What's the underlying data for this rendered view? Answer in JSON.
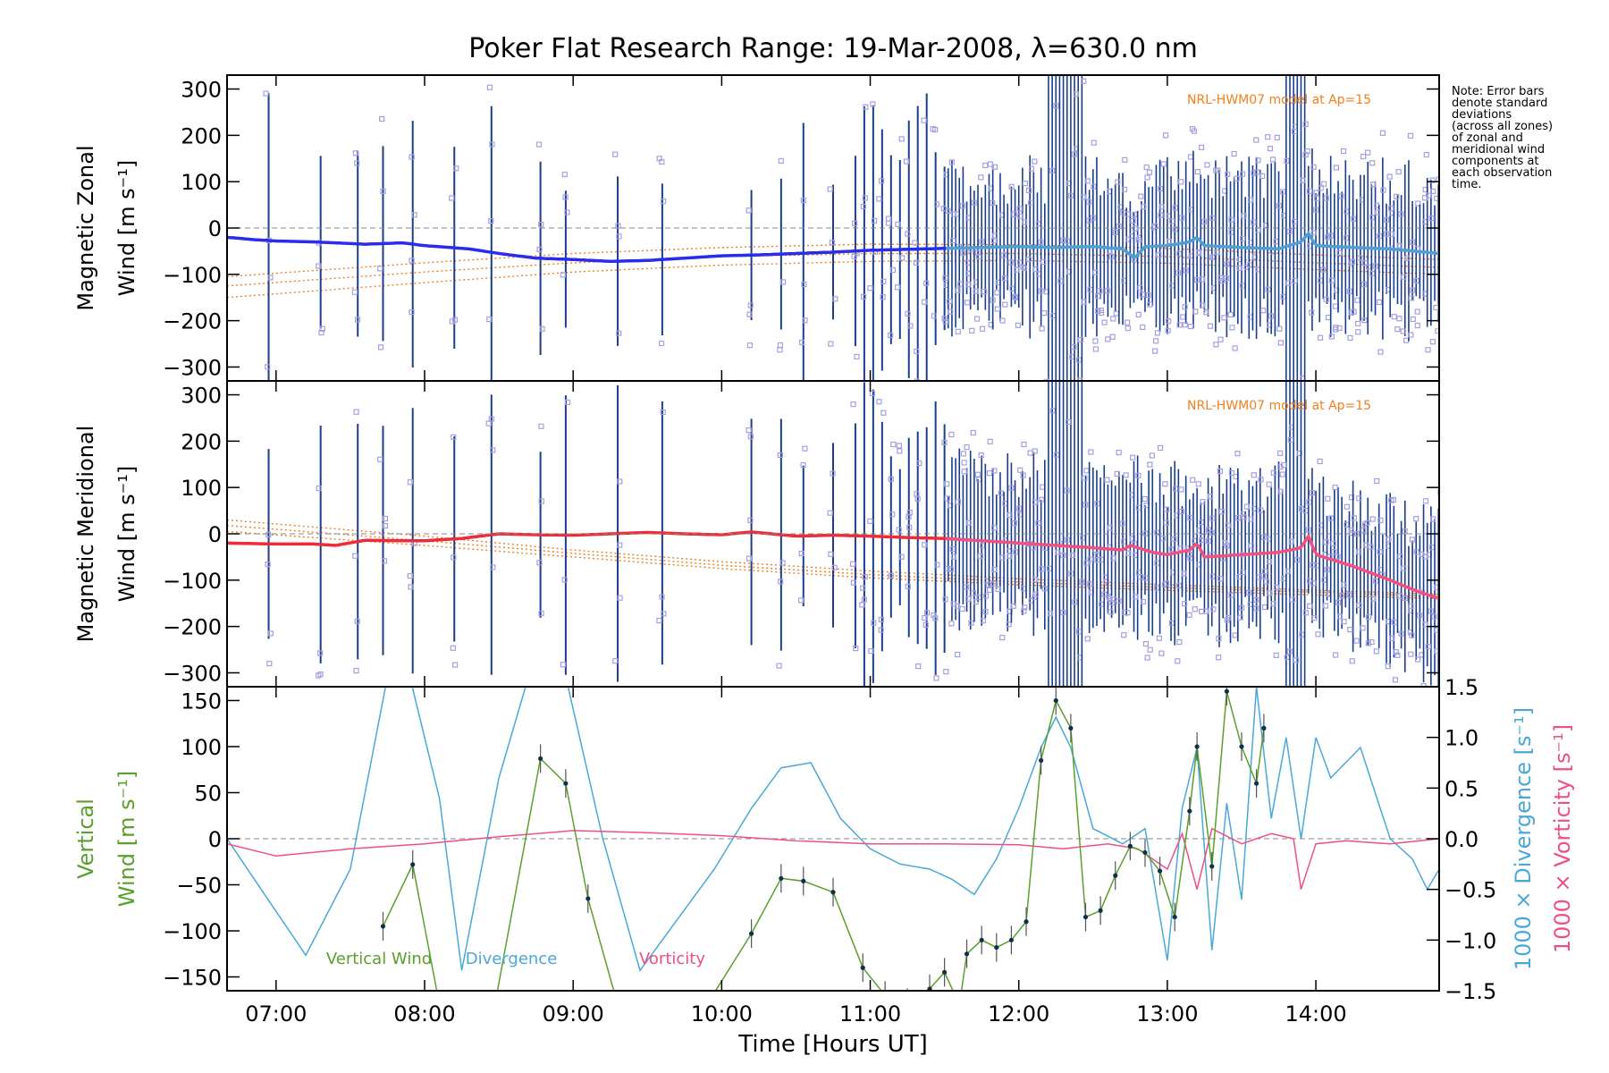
{
  "title": "Poker Flat Research Range: 19-Mar-2008, λ=630.0 nm",
  "note_lines": [
    "Note: Error bars",
    "denote standard",
    "deviations",
    "(across all zones)",
    "of zonal and",
    "meridional wind",
    "components at",
    "each observation",
    "time."
  ],
  "model_label": "NRL-HWM07 model at Ap=15",
  "xaxis": {
    "label": "Time [Hours UT]",
    "range_hours": [
      6.67,
      14.83
    ],
    "ticks": [
      7,
      8,
      9,
      10,
      11,
      12,
      13,
      14
    ],
    "tick_labels": [
      "07:00",
      "08:00",
      "09:00",
      "10:00",
      "11:00",
      "12:00",
      "13:00",
      "14:00"
    ]
  },
  "colors": {
    "zonal": "#2b2bee",
    "zonal_late": "#4d9fd6",
    "meridional": "#ee2b38",
    "meridional_late": "#f2507e",
    "vertical": "#5aa02c",
    "divergence": "#4aa8d8",
    "vorticity": "#ee4f86",
    "model": "#f08020",
    "sample_box": "#a5a0e0",
    "error_bar": "#1a3e8c"
  },
  "chart_data": [
    {
      "type": "line",
      "panel": "zonal",
      "ylabel_line1": "Magnetic Zonal",
      "ylabel_line2": "Wind [m s⁻¹]",
      "ylim": [
        -330,
        330
      ],
      "yticks": [
        -300,
        -200,
        -100,
        0,
        100,
        200,
        300
      ],
      "model_label": "NRL-HWM07 model at Ap=15",
      "series": [
        {
          "x": [
            6.67,
            6.85,
            7.0,
            7.25,
            7.4,
            7.6,
            7.85,
            8.0,
            8.3,
            8.5,
            8.75,
            9.0,
            9.25,
            9.5,
            9.75,
            10.0,
            10.25,
            10.5,
            10.75,
            11.0,
            11.25,
            11.5,
            11.75,
            12.0,
            12.25,
            12.5,
            12.7,
            12.78,
            12.85,
            13.0,
            13.15,
            13.2,
            13.25,
            13.5,
            13.75,
            13.9,
            13.95,
            14.0,
            14.25,
            14.5,
            14.83
          ],
          "y": [
            -20,
            -25,
            -28,
            -30,
            -32,
            -35,
            -32,
            -38,
            -45,
            -55,
            -65,
            -68,
            -72,
            -70,
            -65,
            -60,
            -58,
            -55,
            -52,
            -48,
            -46,
            -44,
            -42,
            -40,
            -42,
            -40,
            -45,
            -65,
            -40,
            -38,
            -30,
            -20,
            -38,
            -42,
            -45,
            -30,
            -12,
            -38,
            -42,
            -45,
            -55
          ]
        }
      ],
      "model_lines": [
        {
          "x": [
            6.67,
            8,
            9,
            10,
            11,
            12,
            13,
            14,
            14.83
          ],
          "y": [
            -150,
            -118,
            -95,
            -80,
            -72,
            -70,
            -76,
            -90,
            -100
          ]
        },
        {
          "x": [
            6.67,
            8,
            9,
            10,
            11,
            12,
            13,
            14,
            14.83
          ],
          "y": [
            -125,
            -95,
            -75,
            -62,
            -55,
            -55,
            -62,
            -75,
            -85
          ]
        },
        {
          "x": [
            6.67,
            8,
            9,
            10,
            11,
            12,
            13,
            14,
            14.83
          ],
          "y": [
            -105,
            -75,
            -55,
            -42,
            -35,
            -36,
            -44,
            -58,
            -68
          ]
        }
      ]
    },
    {
      "type": "line",
      "panel": "meridional",
      "ylabel_line1": "Magnetic Meridional",
      "ylabel_line2": "Wind [m s⁻¹]",
      "ylim": [
        -330,
        330
      ],
      "yticks": [
        -300,
        -200,
        -100,
        0,
        100,
        200,
        300
      ],
      "model_label": "NRL-HWM07 model at Ap=15",
      "series": [
        {
          "x": [
            6.67,
            7.0,
            7.25,
            7.4,
            7.6,
            7.85,
            8.0,
            8.25,
            8.5,
            8.75,
            9.0,
            9.25,
            9.5,
            9.75,
            10.0,
            10.2,
            10.5,
            10.75,
            11.0,
            11.25,
            11.5,
            11.75,
            12.0,
            12.25,
            12.5,
            12.7,
            12.75,
            12.9,
            13.0,
            13.15,
            13.2,
            13.25,
            13.5,
            13.75,
            13.9,
            13.95,
            14.0,
            14.25,
            14.5,
            14.65,
            14.83
          ],
          "y": [
            -20,
            -22,
            -22,
            -25,
            -14,
            -15,
            -15,
            -10,
            0,
            -2,
            -3,
            0,
            3,
            0,
            -2,
            4,
            -5,
            -3,
            -5,
            -8,
            -10,
            -15,
            -20,
            -25,
            -30,
            -35,
            -25,
            -40,
            -45,
            -35,
            -20,
            -50,
            -45,
            -40,
            -30,
            -5,
            -45,
            -70,
            -100,
            -120,
            -140
          ]
        }
      ],
      "model_lines": [
        {
          "x": [
            6.67,
            8,
            9,
            10,
            11,
            12,
            13,
            14,
            14.83
          ],
          "y": [
            30,
            -5,
            -35,
            -60,
            -80,
            -97,
            -110,
            -122,
            -130
          ]
        },
        {
          "x": [
            6.67,
            8,
            9,
            10,
            11,
            12,
            13,
            14,
            14.83
          ],
          "y": [
            18,
            -15,
            -42,
            -68,
            -88,
            -104,
            -116,
            -126,
            -135
          ]
        },
        {
          "x": [
            6.67,
            8,
            9,
            10,
            11,
            12,
            13,
            14,
            14.83
          ],
          "y": [
            5,
            -25,
            -50,
            -75,
            -95,
            -110,
            -122,
            -132,
            -140
          ]
        }
      ]
    },
    {
      "type": "line",
      "panel": "vertical",
      "ylabel_line1": "Vertical",
      "ylabel_line2": "Wind [m s⁻¹]",
      "ylim": [
        -165,
        165
      ],
      "yticks": [
        -150,
        -100,
        -50,
        0,
        50,
        100,
        150
      ],
      "y2label_divergence": "1000 × Divergence [s⁻¹]",
      "y2label_vorticity": "1000 × Vorticity [s⁻¹]",
      "y2lim": [
        -1.5,
        1.5
      ],
      "y2ticks": [
        -1.5,
        -1.0,
        -0.5,
        0.0,
        0.5,
        1.0,
        1.5
      ],
      "y2tick_labels": [
        "−1.5",
        "−1.0",
        "−0.5",
        "0.0",
        "0.5",
        "1.0",
        "1.5"
      ],
      "legend": [
        "Vertical Wind",
        "Divergence",
        "Vorticity"
      ],
      "series": [
        {
          "name": "Vertical Wind",
          "x": [
            7.72,
            7.92,
            8.1,
            8.45,
            8.78,
            8.95,
            9.1,
            9.3,
            9.6,
            9.9,
            10.2,
            10.4,
            10.55,
            10.75,
            10.95,
            11.1,
            11.25,
            11.4,
            11.5,
            11.6,
            11.65,
            11.75,
            11.85,
            11.95,
            12.05,
            12.15,
            12.25,
            12.35,
            12.45,
            12.55,
            12.65,
            12.75,
            12.85,
            12.95,
            13.05,
            13.15,
            13.2,
            13.3,
            13.4,
            13.5,
            13.6,
            13.65
          ],
          "y": [
            -95,
            -28,
            -180,
            -200,
            87,
            60,
            -65,
            -180,
            -220,
            -180,
            -103,
            -43,
            -46,
            -58,
            -140,
            -170,
            -178,
            -163,
            -145,
            -180,
            -125,
            -110,
            -118,
            -110,
            -90,
            85,
            150,
            120,
            -85,
            -78,
            -40,
            -8,
            -15,
            -35,
            -85,
            30,
            100,
            -30,
            160,
            100,
            60,
            120
          ]
        },
        {
          "name": "Divergence",
          "x": [
            6.67,
            6.9,
            7.2,
            7.5,
            7.75,
            7.9,
            8.1,
            8.25,
            8.5,
            8.7,
            8.95,
            9.2,
            9.45,
            9.7,
            9.95,
            10.2,
            10.4,
            10.6,
            10.8,
            11.0,
            11.2,
            11.4,
            11.55,
            11.7,
            11.85,
            12.0,
            12.15,
            12.25,
            12.35,
            12.5,
            12.7,
            12.85,
            13.0,
            13.1,
            13.2,
            13.3,
            13.4,
            13.5,
            13.6,
            13.7,
            13.8,
            13.9,
            14.0,
            14.1,
            14.3,
            14.5,
            14.65,
            14.75,
            14.83
          ],
          "y": [
            0.0,
            -0.5,
            -1.15,
            -0.3,
            1.6,
            1.6,
            0.4,
            -1.3,
            0.6,
            1.6,
            1.6,
            0.0,
            -1.3,
            -0.8,
            -0.3,
            0.3,
            0.7,
            0.75,
            0.2,
            -0.1,
            -0.25,
            -0.3,
            -0.4,
            -0.55,
            -0.2,
            0.3,
            0.9,
            1.2,
            0.9,
            0.1,
            -0.05,
            0.1,
            -1.2,
            0.3,
            0.9,
            -1.1,
            0.35,
            -0.6,
            1.5,
            0.2,
            1.0,
            0.0,
            1.0,
            0.6,
            0.9,
            0.0,
            -0.2,
            -0.5,
            -0.3
          ]
        },
        {
          "name": "Vorticity",
          "x": [
            6.67,
            7.0,
            7.5,
            8.0,
            8.5,
            9.0,
            9.5,
            10.0,
            10.5,
            11.0,
            11.5,
            12.0,
            12.3,
            12.6,
            12.8,
            13.0,
            13.1,
            13.2,
            13.3,
            13.5,
            13.7,
            13.85,
            13.9,
            14.0,
            14.2,
            14.5,
            14.83
          ],
          "y": [
            -0.05,
            -0.17,
            -0.1,
            -0.05,
            0.02,
            0.08,
            0.06,
            0.03,
            -0.02,
            -0.05,
            -0.05,
            -0.06,
            -0.1,
            -0.05,
            -0.1,
            -0.3,
            0.05,
            -0.5,
            0.1,
            -0.05,
            0.05,
            0.0,
            -0.5,
            -0.05,
            -0.02,
            -0.05,
            0.0
          ]
        }
      ]
    }
  ]
}
